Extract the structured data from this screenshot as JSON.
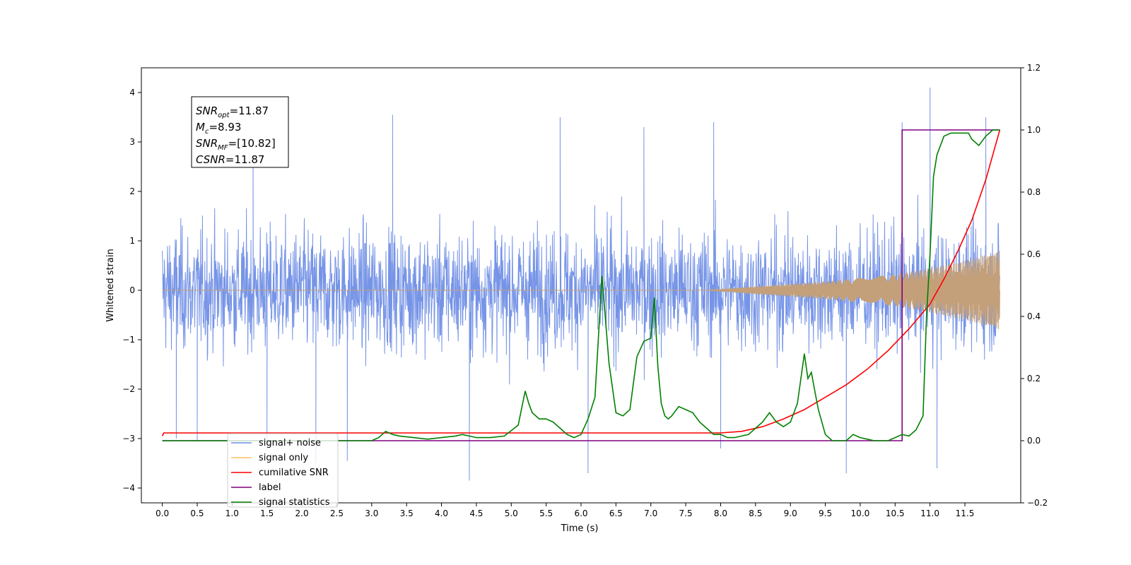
{
  "chart_data": {
    "type": "line",
    "xlabel": "Time (s)",
    "ylabel": "Whitened strain",
    "xlim": [
      -0.3,
      12.3
    ],
    "ylim": [
      -4.3,
      4.5
    ],
    "y2lim": [
      -0.2,
      1.2
    ],
    "grid": false,
    "legend_position": "lower-left",
    "x_ticks": [
      "0.0",
      "0.5",
      "1.0",
      "1.5",
      "2.0",
      "2.5",
      "3.0",
      "3.5",
      "4.0",
      "4.5",
      "5.0",
      "5.5",
      "6.0",
      "6.5",
      "7.0",
      "7.5",
      "8.0",
      "8.5",
      "9.0",
      "9.5",
      "10.0",
      "10.5",
      "11.0",
      "11.5"
    ],
    "y_ticks": [
      "4",
      "3",
      "2",
      "1",
      "0",
      "−1",
      "−2",
      "−3",
      "−4"
    ],
    "y2_ticks": [
      "1.2",
      "1.0",
      "0.8",
      "0.6",
      "0.4",
      "0.2",
      "0.0",
      "−0.2"
    ],
    "annotation": {
      "lines": [
        {
          "base": "SNR",
          "sub": "opt",
          "value": "=11.87"
        },
        {
          "base": "M",
          "sub": "c",
          "value": "=8.93"
        },
        {
          "base": "SNR",
          "sub": "MF",
          "value": "=[10.82]"
        },
        {
          "base": "CSNR",
          "sub": "",
          "value": "=11.87"
        }
      ]
    },
    "series": [
      {
        "name": "signal+ noise",
        "axis": "left",
        "color": "#6f8ee6",
        "kind": "noise-band",
        "x_range": [
          0,
          12.0
        ],
        "envelope": 2.6,
        "spikes": [
          [
            0.2,
            -3.0
          ],
          [
            0.5,
            -3.05
          ],
          [
            1.3,
            3.3
          ],
          [
            1.5,
            -3.25
          ],
          [
            2.2,
            -3.5
          ],
          [
            2.65,
            -3.45
          ],
          [
            3.3,
            3.55
          ],
          [
            4.4,
            -3.85
          ],
          [
            5.7,
            3.5
          ],
          [
            6.1,
            -3.7
          ],
          [
            6.9,
            3.3
          ],
          [
            7.9,
            3.4
          ],
          [
            8.0,
            -3.2
          ],
          [
            9.8,
            -3.7
          ],
          [
            10.6,
            3.4
          ],
          [
            11.0,
            4.1
          ],
          [
            11.1,
            -3.6
          ],
          [
            11.8,
            3.5
          ]
        ]
      },
      {
        "name": "signal only",
        "axis": "left",
        "color": "#c4a07a",
        "kind": "chirp",
        "x_range": [
          0,
          12.0
        ],
        "amplitude_at": [
          [
            0.0,
            0.0
          ],
          [
            7.8,
            0.0
          ],
          [
            8.5,
            0.08
          ],
          [
            9.5,
            0.18
          ],
          [
            10.5,
            0.32
          ],
          [
            11.0,
            0.45
          ],
          [
            11.5,
            0.6
          ],
          [
            12.0,
            0.8
          ]
        ]
      },
      {
        "name": "cumilative SNR",
        "axis": "right",
        "color": "#ff0000",
        "x": [
          0.0,
          0.02,
          8.0,
          8.3,
          8.6,
          8.9,
          9.2,
          9.5,
          9.8,
          10.1,
          10.4,
          10.7,
          11.0,
          11.2,
          11.4,
          11.6,
          11.8,
          12.0
        ],
        "y": [
          0.015,
          0.025,
          0.025,
          0.03,
          0.045,
          0.07,
          0.1,
          0.14,
          0.18,
          0.23,
          0.29,
          0.36,
          0.44,
          0.52,
          0.61,
          0.71,
          0.84,
          1.0
        ]
      },
      {
        "name": "label",
        "axis": "right",
        "color": "#800080",
        "x": [
          0.0,
          10.6,
          10.6,
          12.0
        ],
        "y": [
          0.0,
          0.0,
          1.0,
          1.0
        ]
      },
      {
        "name": "signal statistics",
        "axis": "right",
        "color": "#008000",
        "x": [
          0.0,
          2.8,
          3.0,
          3.1,
          3.2,
          3.3,
          3.4,
          3.6,
          3.8,
          4.0,
          4.2,
          4.3,
          4.4,
          4.5,
          4.7,
          4.9,
          5.1,
          5.2,
          5.25,
          5.3,
          5.4,
          5.5,
          5.6,
          5.7,
          5.8,
          5.9,
          6.0,
          6.1,
          6.2,
          6.3,
          6.4,
          6.5,
          6.6,
          6.7,
          6.8,
          6.9,
          7.0,
          7.05,
          7.1,
          7.15,
          7.2,
          7.25,
          7.3,
          7.4,
          7.5,
          7.6,
          7.7,
          7.8,
          7.9,
          8.0,
          8.1,
          8.2,
          8.3,
          8.4,
          8.5,
          8.6,
          8.7,
          8.8,
          8.9,
          9.0,
          9.1,
          9.2,
          9.25,
          9.3,
          9.35,
          9.4,
          9.5,
          9.6,
          9.7,
          9.8,
          9.9,
          10.0,
          10.1,
          10.2,
          10.3,
          10.4,
          10.5,
          10.6,
          10.7,
          10.8,
          10.9,
          10.95,
          11.0,
          11.05,
          11.1,
          11.2,
          11.3,
          11.4,
          11.5,
          11.55,
          11.6,
          11.7,
          11.8,
          11.9,
          12.0
        ],
        "y": [
          0.0,
          0.0,
          0.0,
          0.01,
          0.03,
          0.02,
          0.015,
          0.01,
          0.005,
          0.01,
          0.015,
          0.02,
          0.015,
          0.01,
          0.01,
          0.015,
          0.05,
          0.16,
          0.12,
          0.09,
          0.07,
          0.07,
          0.06,
          0.04,
          0.02,
          0.01,
          0.02,
          0.07,
          0.14,
          0.53,
          0.25,
          0.09,
          0.08,
          0.1,
          0.27,
          0.32,
          0.33,
          0.46,
          0.24,
          0.12,
          0.08,
          0.07,
          0.08,
          0.11,
          0.1,
          0.09,
          0.06,
          0.04,
          0.02,
          0.02,
          0.01,
          0.01,
          0.015,
          0.02,
          0.04,
          0.06,
          0.09,
          0.06,
          0.045,
          0.06,
          0.12,
          0.28,
          0.2,
          0.22,
          0.16,
          0.1,
          0.02,
          0.0,
          0.0,
          0.0,
          0.02,
          0.01,
          0.005,
          0.0,
          0.0,
          0.0,
          0.01,
          0.02,
          0.015,
          0.035,
          0.08,
          0.4,
          0.6,
          0.85,
          0.92,
          0.98,
          0.99,
          0.99,
          0.99,
          0.99,
          0.97,
          0.95,
          0.98,
          1.0,
          1.0
        ]
      }
    ]
  }
}
